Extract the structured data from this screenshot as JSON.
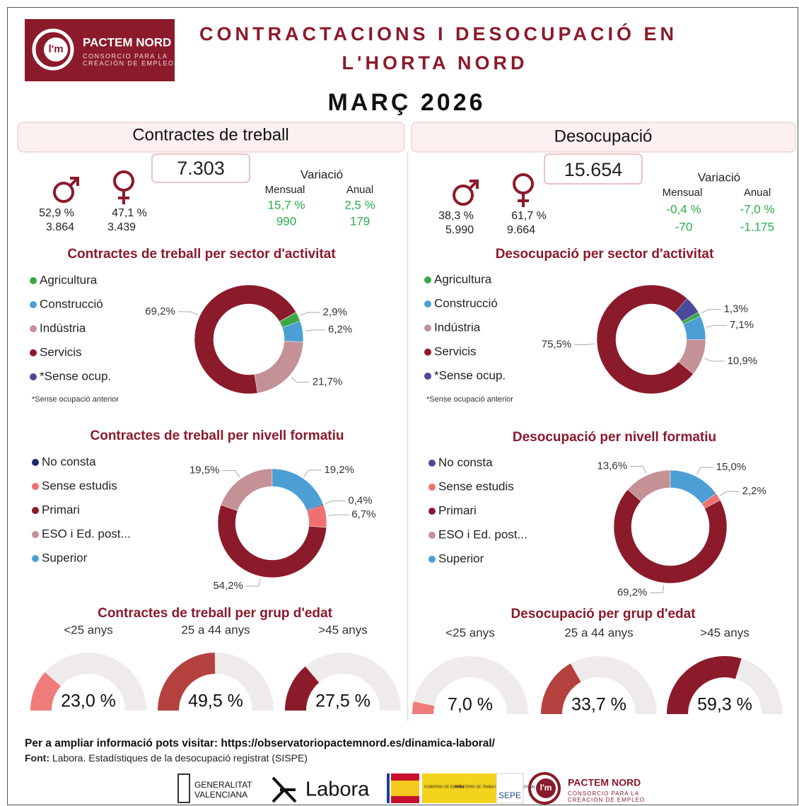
{
  "header": {
    "logo_mark": "l'm",
    "logo_name": "PACTEM NORD",
    "logo_sub_1": "CONSORCIO PARA LA",
    "logo_sub_2": "CREACIÓN DE EMPLEO",
    "title_1": "CONTRACTACIONS I DESOCUPACIÓ EN",
    "title_2": "L'HORTA NORD",
    "period": "MARÇ 2026"
  },
  "panels": [
    {
      "title": "Contractes de treball",
      "total": "7.303",
      "men": {
        "pct": "52,9 %",
        "count": "3.864"
      },
      "women": {
        "pct": "47,1 %",
        "count": "3.439"
      },
      "variation": {
        "title": "Variació",
        "monthly_label": "Mensual",
        "annual_label": "Anual",
        "monthly_pct": "15,7 %",
        "annual_pct": "2,5 %",
        "monthly_count": "990",
        "annual_count": "179"
      }
    },
    {
      "title": "Desocupació",
      "total": "15.654",
      "men": {
        "pct": "38,3 %",
        "count": "5.990"
      },
      "women": {
        "pct": "61,7 %",
        "count": "9.664"
      },
      "variation": {
        "title": "Variació",
        "monthly_label": "Mensual",
        "annual_label": "Anual",
        "monthly_pct": "-0,4 %",
        "annual_pct": "-7,0 %",
        "monthly_count": "-70",
        "annual_count": "-1.175"
      }
    }
  ],
  "chart_data": [
    {
      "type": "pie",
      "title": "Contractes de treball per sector d'activitat",
      "categories": [
        "Agricultura",
        "Construcció",
        "Indústria",
        "Servicis",
        "*Sense ocup."
      ],
      "colors": [
        "#3aa845",
        "#4b9fd5",
        "#c49196",
        "#8b1a2b",
        "#4b4a9a"
      ],
      "values": [
        2.9,
        6.2,
        21.7,
        69.2,
        0
      ],
      "value_labels": [
        "2,9%",
        "6,2%",
        "21,7%",
        "69,2%",
        null
      ],
      "note": "*Sense ocupació anterior"
    },
    {
      "type": "pie",
      "title": "Desocupació per sector d'activitat",
      "categories": [
        "Agricultura",
        "Construcció",
        "Indústria",
        "Servicis",
        "*Sense ocup."
      ],
      "colors": [
        "#3aa845",
        "#4b9fd5",
        "#c49196",
        "#8b1a2b",
        "#4b4a9a"
      ],
      "values": [
        1.3,
        7.1,
        10.9,
        75.5,
        5.2
      ],
      "value_labels": [
        "1,3%",
        "7,1%",
        "10,9%",
        "75,5%",
        null
      ],
      "note": "*Sense ocupació anterior"
    },
    {
      "type": "pie",
      "title": "Contractes de treball per nivell formatiu",
      "categories": [
        "No consta",
        "Sense estudis",
        "Primari",
        "ESO i Ed. post...",
        "Superior"
      ],
      "colors": [
        "#1f2a6b",
        "#f07070",
        "#8b1a2b",
        "#c49196",
        "#4b9fd5"
      ],
      "values": [
        0.4,
        6.7,
        54.2,
        19.5,
        19.2
      ],
      "value_labels": [
        "0,4%",
        "6,7%",
        "54,2%",
        "19,5%",
        "19,2%"
      ]
    },
    {
      "type": "pie",
      "title": "Desocupació per nivell formatiu",
      "categories": [
        "No consta",
        "Sense estudis",
        "Primari",
        "ESO i Ed. post...",
        "Superior"
      ],
      "colors": [
        "#4b4a9a",
        "#f07070",
        "#8b1a2b",
        "#c49196",
        "#4b9fd5"
      ],
      "values": [
        0,
        2.2,
        69.2,
        13.6,
        15.0
      ],
      "value_labels": [
        null,
        "2,2%",
        "69,2%",
        "13,6%",
        "15,0%"
      ]
    },
    {
      "type": "gauge",
      "title": "Contractes de treball per grup d'edat",
      "categories": [
        "<25 anys",
        "25 a 44 anys",
        ">45 anys"
      ],
      "colors": [
        "#f07b7b",
        "#b5413f",
        "#8b1a2b"
      ],
      "values": [
        23.0,
        49.5,
        27.5
      ],
      "value_labels": [
        "23,0 %",
        "49,5 %",
        "27,5 %"
      ],
      "ylim": [
        0,
        100
      ]
    },
    {
      "type": "gauge",
      "title": "Desocupació per grup d'edat",
      "categories": [
        "<25 anys",
        "25 a 44 anys",
        ">45 anys"
      ],
      "colors": [
        "#f07b7b",
        "#b5413f",
        "#8b1a2b"
      ],
      "values": [
        7.0,
        33.7,
        59.3
      ],
      "value_labels": [
        "7,0 %",
        "33,7 %",
        "59,3 %"
      ],
      "ylim": [
        0,
        100
      ]
    }
  ],
  "footer": {
    "more_info": "Per a ampliar informació pots visitar: https://observatoriopactemnord.es/dinamica-laboral/",
    "source_label": "Font:",
    "source": "Labora. Estadístiques de la desocupació registrat (SISPE)",
    "logos": {
      "gva_1": "GENERALITAT",
      "gva_2": "VALENCIANA",
      "labora": "Labora",
      "gob": "GOBIERNO DE ESPAÑA",
      "ministry": "MINISTERIO DE TRABAJO Y ECONOMÍA SOCIAL",
      "sepe": "SEPE",
      "pactem": "PACTEM NORD",
      "pactem_sub_1": "CONSORCIO PARA LA",
      "pactem_sub_2": "CREACIÓN DE EMPLEO"
    }
  }
}
